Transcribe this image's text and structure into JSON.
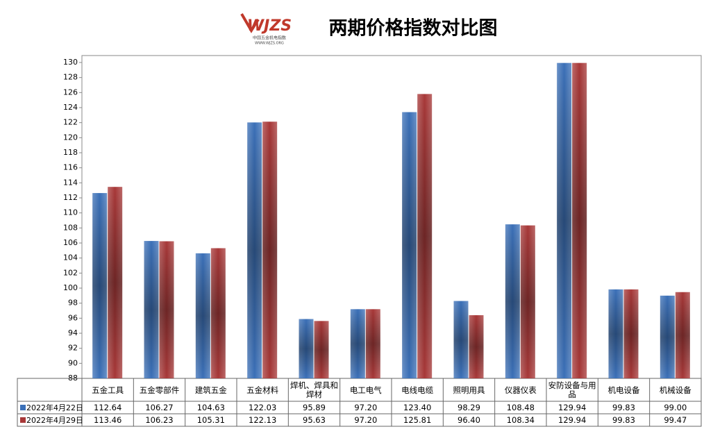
{
  "logo": {
    "mark": "WJZS",
    "name": "中国五金机电指数",
    "url": "WWW.WJZS.ORG"
  },
  "chart_data": {
    "type": "bar",
    "title": "两期价格指数对比图",
    "categories": [
      "五金工具",
      "五金零部件",
      "建筑五金",
      "五金材料",
      "焊机、焊具和焊材",
      "电工电气",
      "电线电缆",
      "照明用具",
      "仪器仪表",
      "安防设备与用品",
      "机电设备",
      "机械设备"
    ],
    "series": [
      {
        "name": "2022年4月22日",
        "color": "#3b70b8",
        "values": [
          112.64,
          106.27,
          104.63,
          122.03,
          95.89,
          97.2,
          123.4,
          98.29,
          108.48,
          129.94,
          99.83,
          99.0
        ],
        "value_labels": [
          "112.64",
          "106.27",
          "104.63",
          "122.03",
          "95.89",
          "97.20",
          "123.40",
          "98.29",
          "108.48",
          "129.94",
          "99.83",
          "99.00"
        ]
      },
      {
        "name": "2022年4月29日",
        "color": "#a83838",
        "values": [
          113.46,
          106.23,
          105.31,
          122.13,
          95.63,
          97.2,
          125.81,
          96.4,
          108.34,
          129.94,
          99.83,
          99.47
        ],
        "value_labels": [
          "113.46",
          "106.23",
          "105.31",
          "122.13",
          "95.63",
          "97.20",
          "125.81",
          "96.40",
          "108.34",
          "129.94",
          "99.83",
          "99.47"
        ]
      }
    ],
    "ylim": [
      88,
      130
    ],
    "yticks": [
      88,
      90,
      92,
      94,
      96,
      98,
      100,
      102,
      104,
      106,
      108,
      110,
      112,
      114,
      116,
      118,
      120,
      122,
      124,
      126,
      128,
      130
    ],
    "grid": false
  }
}
